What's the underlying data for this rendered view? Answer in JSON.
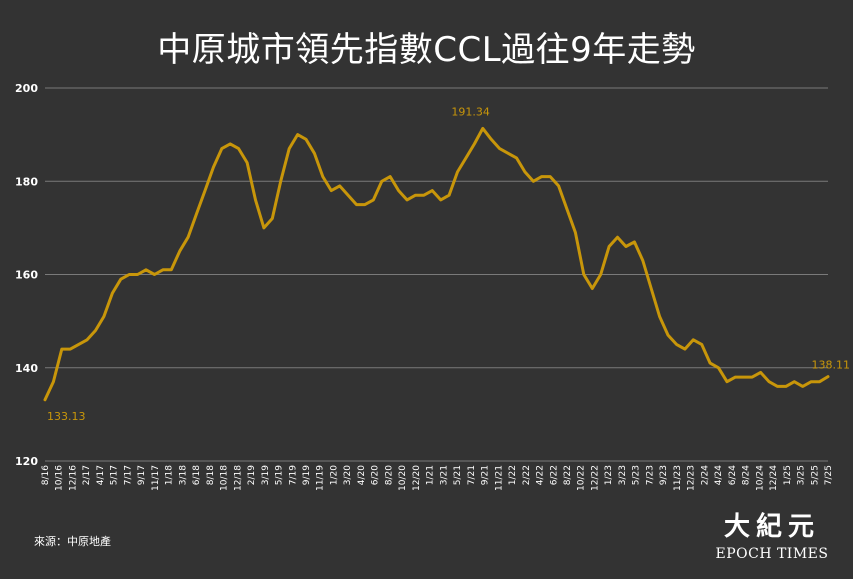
{
  "source_note": "來源：中原地產",
  "brand": {
    "name_cn": "大紀元",
    "name_en": "EPOCH TIMES"
  },
  "colors": {
    "background": "#333333",
    "line": "#c8960a",
    "grid": "#7a7a7a",
    "text": "#ffffff"
  },
  "chart_data": {
    "type": "line",
    "title": "中原城市領先指數CCL過往9年走勢",
    "ylim": [
      120,
      200
    ],
    "yticks": [
      120,
      140,
      160,
      180,
      200
    ],
    "grid": true,
    "xticklabels": [
      "8/16",
      "10/16",
      "12/16",
      "2/17",
      "4/17",
      "5/17",
      "7/17",
      "9/17",
      "11/17",
      "1/18",
      "3/18",
      "6/18",
      "8/18",
      "10/18",
      "12/18",
      "2/19",
      "3/19",
      "5/19",
      "7/19",
      "9/19",
      "11/19",
      "1/20",
      "3/20",
      "4/20",
      "6/20",
      "8/20",
      "10/20",
      "12/20",
      "1/21",
      "3/21",
      "5/21",
      "7/21",
      "9/21",
      "11/21",
      "1/22",
      "2/22",
      "4/22",
      "6/22",
      "8/22",
      "10/22",
      "12/22",
      "1/23",
      "3/23",
      "5/23",
      "7/23",
      "9/23",
      "11/23",
      "12/23",
      "2/24",
      "4/24",
      "6/24",
      "8/24",
      "10/24",
      "12/24",
      "1/25",
      "3/25",
      "5/25",
      "7/25"
    ],
    "annotations": [
      {
        "text": "133.13",
        "value": 133.13,
        "x_index": 0
      },
      {
        "text": "191.34",
        "value": 191.34,
        "x_index": 32
      },
      {
        "text": "138.11",
        "value": 138.11,
        "x_index": 57
      }
    ],
    "series": [
      {
        "values": [
          133.13,
          137,
          144,
          144,
          145,
          146,
          148,
          151,
          156,
          159,
          160,
          160,
          161,
          160,
          161,
          161,
          165,
          168,
          173,
          178,
          183,
          187,
          188,
          187,
          184,
          176,
          170,
          172,
          180,
          187,
          190,
          189,
          186,
          181,
          178,
          179,
          177,
          175,
          175,
          176,
          180,
          181,
          178,
          176,
          177,
          177,
          178,
          176,
          177,
          182,
          185,
          188,
          191.34,
          189,
          187,
          186,
          185,
          182,
          180,
          181,
          181,
          179,
          174,
          169,
          160,
          157,
          160,
          166,
          168,
          166,
          167,
          163,
          157,
          151,
          147,
          145,
          144,
          146,
          145,
          141,
          140,
          137,
          138,
          138,
          138,
          139,
          137,
          136,
          136,
          137,
          136,
          137,
          137,
          138.11
        ]
      }
    ]
  }
}
